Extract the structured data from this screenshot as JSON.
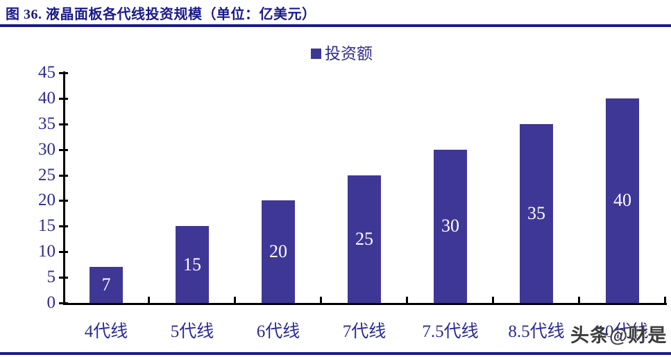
{
  "figure": {
    "title": "图 36. 液晶面板各代线投资规模（单位：亿美元）",
    "watermark": "头条@财是"
  },
  "chart_data": {
    "type": "bar",
    "title": "",
    "categories": [
      "4代线",
      "5代线",
      "6代线",
      "7代线",
      "7.5代线",
      "8.5代线",
      "10代线"
    ],
    "series": [
      {
        "name": "投资额",
        "values": [
          7,
          15,
          20,
          25,
          30,
          35,
          40
        ]
      }
    ],
    "data_labels": [
      7,
      15,
      20,
      25,
      30,
      35,
      40
    ],
    "data_label_position": "inside-center",
    "xlabel": "",
    "ylabel": "",
    "ylim": [
      0,
      45
    ],
    "yticks": [
      0,
      5,
      10,
      15,
      20,
      25,
      30,
      35,
      40,
      45
    ],
    "grid": false,
    "legend_position": "top-center",
    "colors": {
      "bar": "#3f3795",
      "axis": "#000000",
      "tick_label": "#2b2b94",
      "bar_label": "#ffffff",
      "title": "#1a1a8c",
      "rule": "#1a1a8c",
      "watermark": "#3c3c3c"
    }
  }
}
